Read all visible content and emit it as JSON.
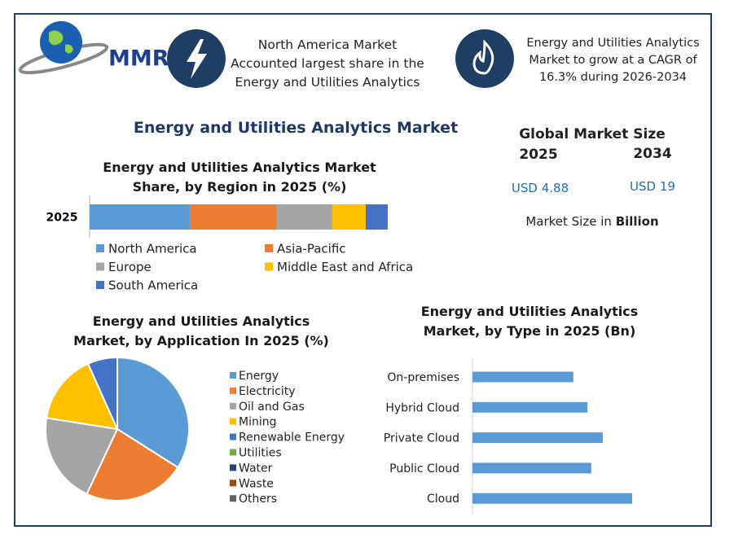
{
  "logo": "MMR",
  "header": {
    "highlight_1": "North America Market Accounted largest share in the Energy and Utilities Analytics",
    "highlight_2": "Energy and Utilities Analytics Market to grow at a CAGR of 16.3% during 2026-2034"
  },
  "title": "Energy and Utilities Analytics Market",
  "market_size": {
    "title": "Global Market Size",
    "years": [
      "2025",
      "2034"
    ],
    "values": [
      "USD 4.88",
      "USD 19"
    ],
    "note": "Market Size in",
    "note_unit": "Billion"
  },
  "chart_data": [
    {
      "type": "stacked_bar",
      "title": "Energy and Utilities Analytics Market Share, by Region in 2025 (%)",
      "categories": [
        "2025"
      ],
      "series": [
        {
          "name": "North America",
          "color": "#5b9bd5",
          "values": [
            33.6
          ]
        },
        {
          "name": "Asia-Pacific",
          "color": "#ed7d31",
          "values": [
            29.2
          ]
        },
        {
          "name": "Europe",
          "color": "#a5a5a5",
          "values": [
            18.6
          ]
        },
        {
          "name": "Middle East and Africa",
          "color": "#ffc000",
          "values": [
            11.2
          ]
        },
        {
          "name": "South America",
          "color": "#4472c4",
          "values": [
            7.4
          ]
        }
      ]
    },
    {
      "type": "pie",
      "title": "Energy and Utilities Analytics Market, by Application In 2025 (%)",
      "categories": [
        "Energy",
        "Electricity",
        "Oil and Gas",
        "Mining",
        "Renewable Energy",
        "Utilities",
        "Water",
        "Waste",
        "Others"
      ],
      "values": [
        34,
        23,
        20.5,
        15.8,
        6.7,
        0,
        0,
        0,
        0
      ],
      "colors": [
        "#5b9bd5",
        "#ed7d31",
        "#a5a5a5",
        "#ffc000",
        "#4472c4",
        "#70ad47",
        "#264478",
        "#9e480e",
        "#636363"
      ]
    },
    {
      "type": "bar",
      "orientation": "horizontal",
      "title": "Energy and Utilities Analytics Market, by Type in 2025 (Bn)",
      "categories": [
        "On-premises",
        "Hybrid Cloud",
        "Private Cloud",
        "Public Cloud",
        "Cloud"
      ],
      "values": [
        0.79,
        0.9,
        1.02,
        0.93,
        1.25
      ],
      "color": "#5b9bd5"
    }
  ]
}
